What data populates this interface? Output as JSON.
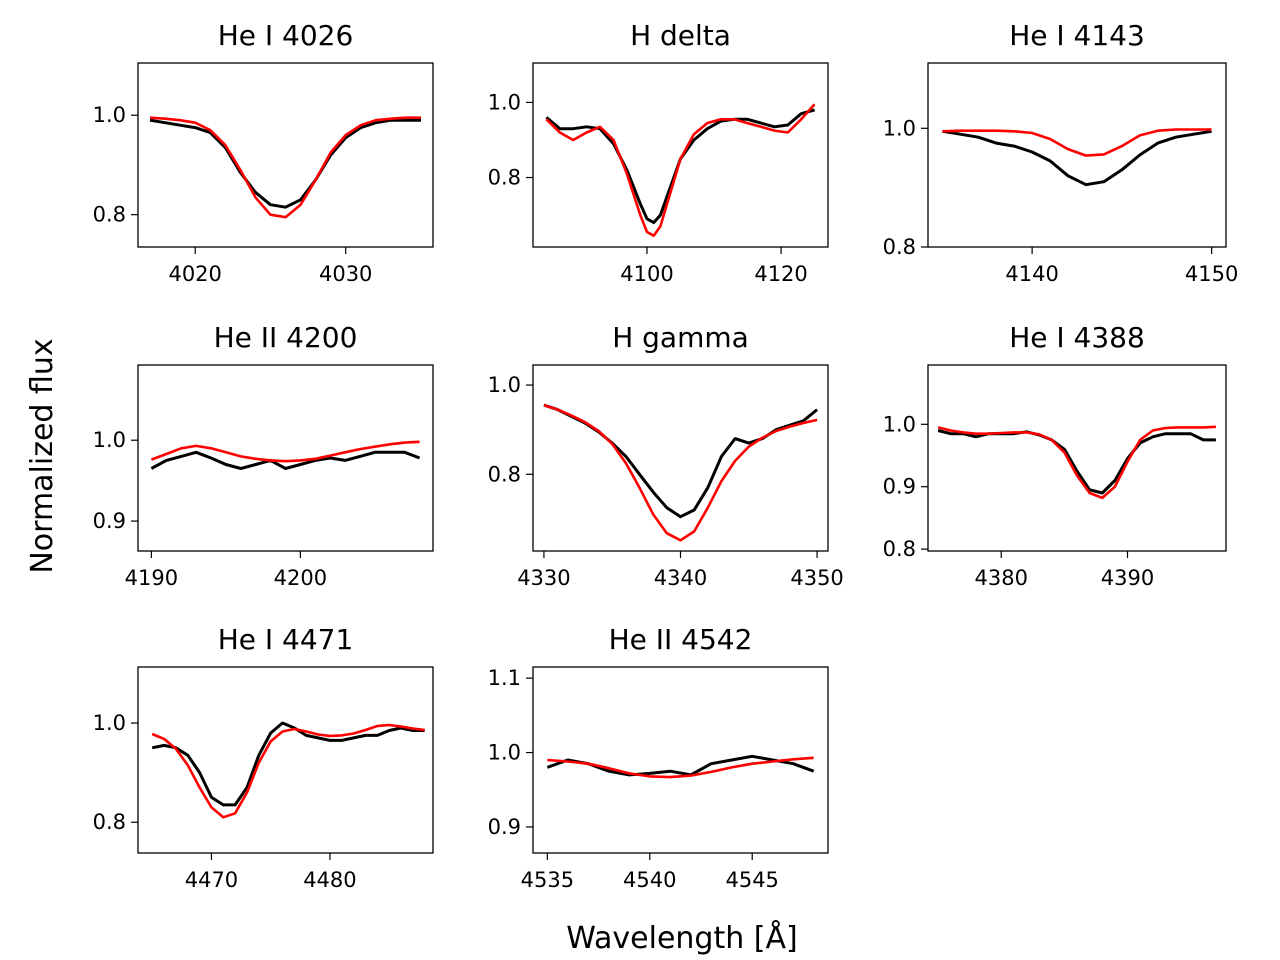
{
  "figure": {
    "ylabel": "Normalized flux",
    "xlabel": "Wavelength [Å]",
    "colors": {
      "observed": "#000000",
      "model": "#ff0000"
    }
  },
  "chart_data": [
    {
      "type": "line",
      "title": "He I 4026",
      "xlim": [
        4016.2,
        4035.8
      ],
      "ylim": [
        0.735,
        1.105
      ],
      "xticks": [
        4020,
        4030
      ],
      "yticks": [
        0.8,
        1.0
      ],
      "series": [
        {
          "role": "observed",
          "x": [
            4017,
            4018,
            4019,
            4020,
            4021,
            4022,
            4023,
            4024,
            4025,
            4026,
            4027,
            4028,
            4029,
            4030,
            4031,
            4032,
            4033,
            4034,
            4035
          ],
          "y": [
            0.99,
            0.985,
            0.98,
            0.975,
            0.965,
            0.935,
            0.885,
            0.845,
            0.82,
            0.815,
            0.83,
            0.87,
            0.92,
            0.955,
            0.975,
            0.985,
            0.99,
            0.99,
            0.99
          ]
        },
        {
          "role": "model",
          "x": [
            4017,
            4018,
            4019,
            4020,
            4021,
            4022,
            4023,
            4024,
            4025,
            4026,
            4027,
            4028,
            4029,
            4030,
            4031,
            4032,
            4033,
            4034,
            4035
          ],
          "y": [
            0.995,
            0.993,
            0.99,
            0.985,
            0.97,
            0.94,
            0.89,
            0.835,
            0.8,
            0.795,
            0.82,
            0.87,
            0.925,
            0.96,
            0.98,
            0.99,
            0.993,
            0.995,
            0.995
          ]
        }
      ]
    },
    {
      "type": "line",
      "title": "H delta",
      "xlim": [
        4083,
        4127
      ],
      "ylim": [
        0.615,
        1.105
      ],
      "xticks": [
        4100,
        4120
      ],
      "yticks": [
        0.8,
        1.0
      ],
      "series": [
        {
          "role": "observed",
          "x": [
            4085,
            4087,
            4089,
            4091,
            4093,
            4095,
            4097,
            4099,
            4100,
            4101,
            4102,
            4103,
            4105,
            4107,
            4109,
            4111,
            4113,
            4115,
            4117,
            4119,
            4121,
            4123,
            4125
          ],
          "y": [
            0.96,
            0.93,
            0.93,
            0.935,
            0.93,
            0.89,
            0.82,
            0.73,
            0.69,
            0.68,
            0.7,
            0.75,
            0.85,
            0.9,
            0.93,
            0.95,
            0.955,
            0.955,
            0.945,
            0.935,
            0.94,
            0.97,
            0.98
          ]
        },
        {
          "role": "model",
          "x": [
            4085,
            4087,
            4089,
            4091,
            4093,
            4095,
            4097,
            4099,
            4100,
            4101,
            4102,
            4103,
            4105,
            4107,
            4109,
            4111,
            4113,
            4115,
            4117,
            4119,
            4121,
            4123,
            4125
          ],
          "y": [
            0.955,
            0.92,
            0.9,
            0.92,
            0.935,
            0.9,
            0.81,
            0.7,
            0.655,
            0.645,
            0.67,
            0.73,
            0.85,
            0.915,
            0.945,
            0.955,
            0.955,
            0.945,
            0.935,
            0.925,
            0.92,
            0.955,
            0.995
          ]
        }
      ]
    },
    {
      "type": "line",
      "title": "He I 4143",
      "xlim": [
        4134.2,
        4150.8
      ],
      "ylim": [
        0.8,
        1.11
      ],
      "xticks": [
        4140,
        4150
      ],
      "yticks": [
        0.8,
        1.0
      ],
      "series": [
        {
          "role": "observed",
          "x": [
            4135,
            4136,
            4137,
            4138,
            4139,
            4140,
            4141,
            4142,
            4143,
            4144,
            4145,
            4146,
            4147,
            4148,
            4149,
            4150
          ],
          "y": [
            0.995,
            0.99,
            0.985,
            0.975,
            0.97,
            0.96,
            0.945,
            0.92,
            0.905,
            0.91,
            0.93,
            0.955,
            0.975,
            0.985,
            0.99,
            0.995
          ]
        },
        {
          "role": "model",
          "x": [
            4135,
            4136,
            4137,
            4138,
            4139,
            4140,
            4141,
            4142,
            4143,
            4144,
            4145,
            4146,
            4147,
            4148,
            4149,
            4150
          ],
          "y": [
            0.995,
            0.996,
            0.996,
            0.996,
            0.995,
            0.992,
            0.982,
            0.965,
            0.954,
            0.956,
            0.97,
            0.988,
            0.996,
            0.998,
            0.998,
            0.998
          ]
        }
      ]
    },
    {
      "type": "line",
      "title": "He II 4200",
      "xlim": [
        4189.1,
        4208.9
      ],
      "ylim": [
        0.863,
        1.093
      ],
      "xticks": [
        4190,
        4200
      ],
      "yticks": [
        0.9,
        1.0
      ],
      "series": [
        {
          "role": "observed",
          "x": [
            4190,
            4191,
            4192,
            4193,
            4194,
            4195,
            4196,
            4197,
            4198,
            4199,
            4200,
            4201,
            4202,
            4203,
            4204,
            4205,
            4206,
            4207,
            4208
          ],
          "y": [
            0.965,
            0.975,
            0.98,
            0.985,
            0.978,
            0.97,
            0.965,
            0.97,
            0.975,
            0.965,
            0.97,
            0.975,
            0.978,
            0.975,
            0.98,
            0.985,
            0.985,
            0.985,
            0.978
          ]
        },
        {
          "role": "model",
          "x": [
            4190,
            4191,
            4192,
            4193,
            4194,
            4195,
            4196,
            4197,
            4198,
            4199,
            4200,
            4201,
            4202,
            4203,
            4204,
            4205,
            4206,
            4207,
            4208
          ],
          "y": [
            0.976,
            0.983,
            0.99,
            0.993,
            0.99,
            0.985,
            0.98,
            0.977,
            0.975,
            0.974,
            0.975,
            0.977,
            0.981,
            0.985,
            0.989,
            0.992,
            0.995,
            0.997,
            0.998
          ]
        }
      ]
    },
    {
      "type": "line",
      "title": "H gamma",
      "xlim": [
        4329.2,
        4350.8
      ],
      "ylim": [
        0.628,
        1.045
      ],
      "xticks": [
        4330,
        4340,
        4350
      ],
      "yticks": [
        0.8,
        1.0
      ],
      "series": [
        {
          "role": "observed",
          "x": [
            4330,
            4331,
            4332,
            4333,
            4334,
            4335,
            4336,
            4337,
            4338,
            4339,
            4340,
            4341,
            4342,
            4343,
            4344,
            4345,
            4346,
            4347,
            4348,
            4349,
            4350
          ],
          "y": [
            0.955,
            0.945,
            0.93,
            0.915,
            0.895,
            0.87,
            0.84,
            0.8,
            0.76,
            0.725,
            0.705,
            0.72,
            0.77,
            0.84,
            0.88,
            0.87,
            0.88,
            0.9,
            0.91,
            0.92,
            0.945
          ]
        },
        {
          "role": "model",
          "x": [
            4330,
            4331,
            4332,
            4333,
            4334,
            4335,
            4336,
            4337,
            4338,
            4339,
            4340,
            4341,
            4342,
            4343,
            4344,
            4345,
            4346,
            4347,
            4348,
            4349,
            4350
          ],
          "y": [
            0.955,
            0.945,
            0.932,
            0.917,
            0.897,
            0.868,
            0.825,
            0.77,
            0.71,
            0.668,
            0.652,
            0.672,
            0.725,
            0.785,
            0.83,
            0.862,
            0.882,
            0.897,
            0.907,
            0.915,
            0.922
          ]
        }
      ]
    },
    {
      "type": "line",
      "title": "He I 4388",
      "xlim": [
        4374.2,
        4397.8
      ],
      "ylim": [
        0.797,
        1.095
      ],
      "xticks": [
        4380,
        4390
      ],
      "yticks": [
        0.8,
        0.9,
        1.0
      ],
      "series": [
        {
          "role": "observed",
          "x": [
            4375,
            4376,
            4377,
            4378,
            4379,
            4380,
            4381,
            4382,
            4383,
            4384,
            4385,
            4386,
            4387,
            4388,
            4389,
            4390,
            4391,
            4392,
            4393,
            4394,
            4395,
            4396,
            4397
          ],
          "y": [
            0.99,
            0.985,
            0.985,
            0.98,
            0.985,
            0.985,
            0.985,
            0.988,
            0.983,
            0.975,
            0.96,
            0.925,
            0.895,
            0.89,
            0.91,
            0.945,
            0.97,
            0.98,
            0.985,
            0.985,
            0.985,
            0.975,
            0.975
          ]
        },
        {
          "role": "model",
          "x": [
            4375,
            4376,
            4377,
            4378,
            4379,
            4380,
            4381,
            4382,
            4383,
            4384,
            4385,
            4386,
            4387,
            4388,
            4389,
            4390,
            4391,
            4392,
            4393,
            4394,
            4395,
            4396,
            4397
          ],
          "y": [
            0.995,
            0.99,
            0.987,
            0.985,
            0.985,
            0.986,
            0.987,
            0.987,
            0.984,
            0.975,
            0.955,
            0.918,
            0.89,
            0.882,
            0.9,
            0.94,
            0.975,
            0.99,
            0.994,
            0.995,
            0.995,
            0.995,
            0.996
          ]
        }
      ]
    },
    {
      "type": "line",
      "title": "He I 4471",
      "xlim": [
        4463.8,
        4488.7
      ],
      "ylim": [
        0.738,
        1.113
      ],
      "xticks": [
        4470,
        4480
      ],
      "yticks": [
        0.8,
        1.0
      ],
      "series": [
        {
          "role": "observed",
          "x": [
            4465,
            4466,
            4467,
            4468,
            4469,
            4470,
            4471,
            4472,
            4473,
            4474,
            4475,
            4476,
            4477,
            4478,
            4479,
            4480,
            4481,
            4482,
            4483,
            4484,
            4485,
            4486,
            4487,
            4488
          ],
          "y": [
            0.95,
            0.955,
            0.95,
            0.935,
            0.9,
            0.85,
            0.835,
            0.835,
            0.87,
            0.935,
            0.98,
            1.0,
            0.99,
            0.975,
            0.97,
            0.965,
            0.965,
            0.97,
            0.975,
            0.975,
            0.985,
            0.99,
            0.985,
            0.985
          ]
        },
        {
          "role": "model",
          "x": [
            4465,
            4466,
            4467,
            4468,
            4469,
            4470,
            4471,
            4472,
            4473,
            4474,
            4475,
            4476,
            4477,
            4478,
            4479,
            4480,
            4481,
            4482,
            4483,
            4484,
            4485,
            4486,
            4487,
            4488
          ],
          "y": [
            0.978,
            0.968,
            0.948,
            0.915,
            0.87,
            0.83,
            0.81,
            0.818,
            0.86,
            0.92,
            0.963,
            0.983,
            0.988,
            0.983,
            0.977,
            0.974,
            0.975,
            0.979,
            0.986,
            0.994,
            0.996,
            0.993,
            0.989,
            0.986
          ]
        }
      ]
    },
    {
      "type": "line",
      "title": "He II 4542",
      "xlim": [
        4534.3,
        4548.7
      ],
      "ylim": [
        0.865,
        1.115
      ],
      "xticks": [
        4535,
        4540,
        4545
      ],
      "yticks": [
        0.9,
        1.0,
        1.1
      ],
      "series": [
        {
          "role": "observed",
          "x": [
            4535,
            4536,
            4537,
            4538,
            4539,
            4540,
            4541,
            4542,
            4543,
            4544,
            4545,
            4546,
            4547,
            4548
          ],
          "y": [
            0.98,
            0.99,
            0.985,
            0.975,
            0.97,
            0.972,
            0.975,
            0.97,
            0.985,
            0.99,
            0.995,
            0.99,
            0.985,
            0.975
          ]
        },
        {
          "role": "model",
          "x": [
            4535,
            4536,
            4537,
            4538,
            4539,
            4540,
            4541,
            4542,
            4543,
            4544,
            4545,
            4546,
            4547,
            4548
          ],
          "y": [
            0.99,
            0.988,
            0.985,
            0.979,
            0.972,
            0.968,
            0.967,
            0.969,
            0.974,
            0.98,
            0.985,
            0.988,
            0.991,
            0.993
          ]
        }
      ]
    }
  ]
}
